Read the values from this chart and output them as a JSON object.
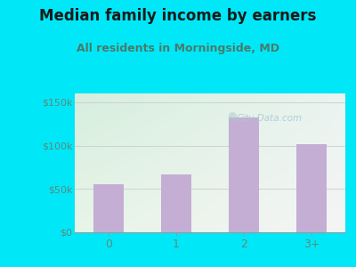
{
  "title": "Median family income by earners",
  "subtitle": "All residents in Morningside, MD",
  "categories": [
    "0",
    "1",
    "2",
    "3+"
  ],
  "values": [
    55000,
    67000,
    132000,
    102000
  ],
  "bar_color": "#c4aed4",
  "title_fontsize": 12,
  "subtitle_fontsize": 9,
  "yticks": [
    0,
    50000,
    100000,
    150000
  ],
  "ytick_labels": [
    "$0",
    "$50k",
    "$100k",
    "$150k"
  ],
  "ylim": [
    0,
    160000
  ],
  "bg_outer": "#00e8f8",
  "bg_inner_topleft": "#d6eedd",
  "bg_inner_bottomright": "#f5f5f5",
  "watermark": "City-Data.com",
  "title_color": "#1a1a1a",
  "subtitle_color": "#4a7a6a",
  "tick_color": "#5a8a7a",
  "watermark_color": "#aac8d0",
  "grid_color": "#cccccc"
}
